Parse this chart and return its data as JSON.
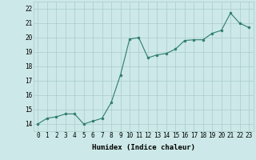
{
  "x": [
    0,
    1,
    2,
    3,
    4,
    5,
    6,
    7,
    8,
    9,
    10,
    11,
    12,
    13,
    14,
    15,
    16,
    17,
    18,
    19,
    20,
    21,
    22,
    23
  ],
  "y": [
    14.0,
    14.4,
    14.5,
    14.7,
    14.7,
    14.0,
    14.2,
    14.4,
    15.5,
    17.4,
    19.9,
    20.0,
    18.6,
    18.8,
    18.9,
    19.2,
    19.8,
    19.85,
    19.85,
    20.3,
    20.5,
    21.7,
    21.0,
    20.7
  ],
  "line_color": "#2e7d6e",
  "marker_color": "#2e7d6e",
  "bg_color": "#cce8e8",
  "grid_color": "#aacccc",
  "xlabel": "Humidex (Indice chaleur)",
  "ylabel": "",
  "ylim": [
    13.5,
    22.5
  ],
  "xlim": [
    -0.5,
    23.5
  ],
  "yticks": [
    14,
    15,
    16,
    17,
    18,
    19,
    20,
    21,
    22
  ],
  "xticks": [
    0,
    1,
    2,
    3,
    4,
    5,
    6,
    7,
    8,
    9,
    10,
    11,
    12,
    13,
    14,
    15,
    16,
    17,
    18,
    19,
    20,
    21,
    22,
    23
  ],
  "label_fontsize": 6.5,
  "tick_fontsize": 5.5
}
